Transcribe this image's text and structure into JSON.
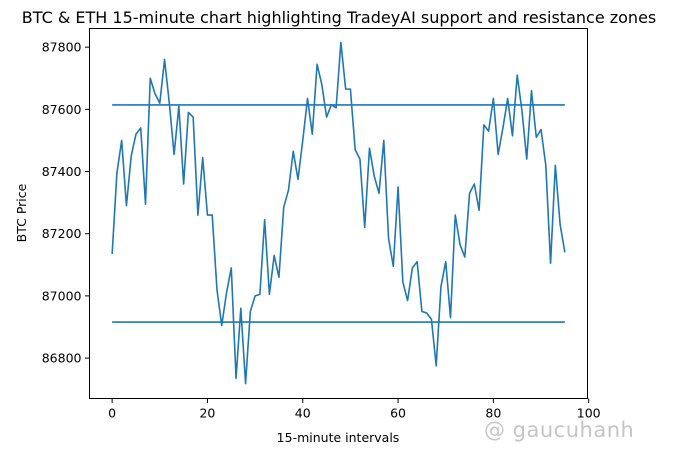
{
  "chart_data": {
    "type": "line",
    "title": "BTC & ETH 15-minute chart highlighting TradeyAI support and resistance zones",
    "xlabel": "15-minute intervals",
    "ylabel": "BTC Price",
    "xlim": [
      -4.75,
      99.75
    ],
    "ylim": [
      86670,
      87860
    ],
    "xticks": [
      0,
      20,
      40,
      60,
      80,
      100
    ],
    "yticks": [
      86800,
      87000,
      87200,
      87400,
      87600,
      87800
    ],
    "grid": false,
    "legend": "none",
    "series": [
      {
        "color": "#1f77b4",
        "x": [
          0,
          1,
          2,
          3,
          4,
          5,
          6,
          7,
          8,
          9,
          10,
          11,
          12,
          13,
          14,
          15,
          16,
          17,
          18,
          19,
          20,
          21,
          22,
          23,
          24,
          25,
          26,
          27,
          28,
          29,
          30,
          31,
          32,
          33,
          34,
          35,
          36,
          37,
          38,
          39,
          40,
          41,
          42,
          43,
          44,
          45,
          46,
          47,
          48,
          49,
          50,
          51,
          52,
          53,
          54,
          55,
          56,
          57,
          58,
          59,
          60,
          61,
          62,
          63,
          64,
          65,
          66,
          67,
          68,
          69,
          70,
          71,
          72,
          73,
          74,
          75,
          76,
          77,
          78,
          79,
          80,
          81,
          82,
          83,
          84,
          85,
          86,
          87,
          88,
          89,
          90,
          91,
          92,
          93,
          94,
          95
        ],
        "y": [
          87135,
          87395,
          87500,
          87290,
          87450,
          87520,
          87540,
          87295,
          87700,
          87650,
          87620,
          87760,
          87620,
          87455,
          87610,
          87360,
          87590,
          87575,
          87260,
          87445,
          87260,
          87260,
          87020,
          86905,
          87010,
          87090,
          86735,
          86960,
          86718,
          86950,
          87000,
          87005,
          87245,
          87005,
          87130,
          87060,
          87285,
          87340,
          87465,
          87375,
          87500,
          87635,
          87520,
          87745,
          87680,
          87575,
          87615,
          87605,
          87815,
          87665,
          87665,
          87470,
          87440,
          87220,
          87475,
          87385,
          87330,
          87500,
          87185,
          87095,
          87350,
          87045,
          86985,
          87090,
          87110,
          86950,
          86945,
          86925,
          86775,
          87030,
          87110,
          86930,
          87260,
          87165,
          87125,
          87330,
          87360,
          87275,
          87550,
          87530,
          87635,
          87455,
          87540,
          87635,
          87515,
          87710,
          87595,
          87440,
          87660,
          87510,
          87535,
          87420,
          87105,
          87420,
          87230,
          87140
        ]
      }
    ],
    "levels": [
      {
        "color": "#1f77b4",
        "y": 87614,
        "x_start": 0,
        "x_end": 95
      },
      {
        "color": "#1f77b4",
        "y": 86916,
        "x_start": 0,
        "x_end": 95
      }
    ]
  },
  "watermark": "@ gaucuhanh"
}
